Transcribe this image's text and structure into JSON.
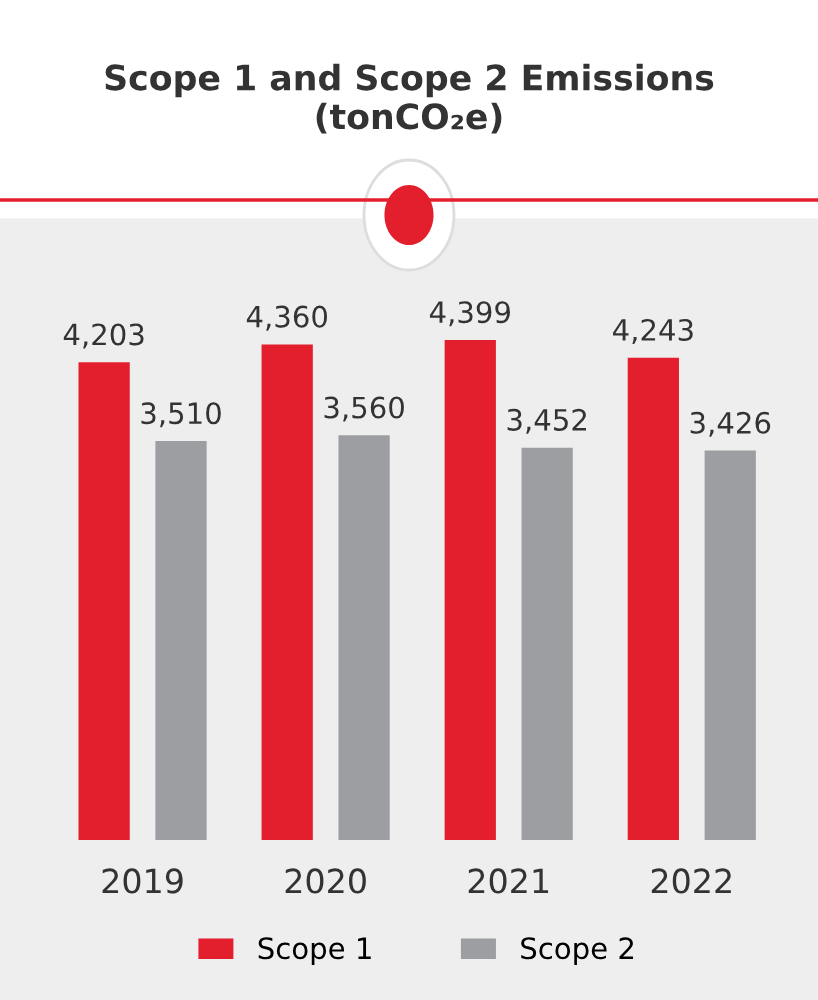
{
  "chart_data": {
    "type": "bar",
    "title": "Scope 1 and Scope 2 Emissions\n(tonCO₂e)",
    "categories": [
      "2019",
      "2020",
      "2021",
      "2022"
    ],
    "series": [
      {
        "name": "Scope 1",
        "color": "#e31e2d",
        "values": [
          4203,
          4360,
          4399,
          4243
        ],
        "value_labels": [
          "4,203",
          "4,360",
          "4,399",
          "4,243"
        ]
      },
      {
        "name": "Scope 2",
        "color": "#9d9ea2",
        "values": [
          3510,
          3560,
          3452,
          3426
        ],
        "value_labels": [
          "3,510",
          "3,560",
          "3,452",
          "3,426"
        ]
      }
    ],
    "legend": "bottom",
    "grid": false
  }
}
